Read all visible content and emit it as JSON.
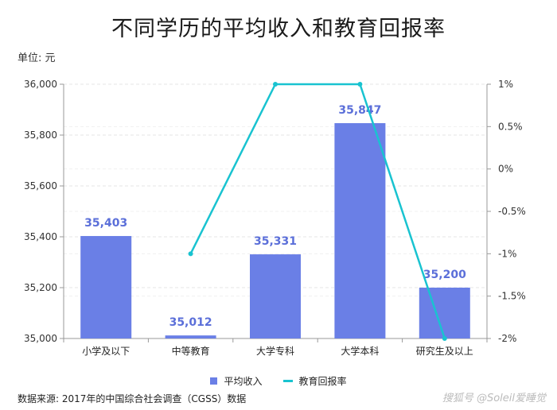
{
  "title": "不同学历的平均收入和教育回报率",
  "unit_label": "单位: 元",
  "source": "数据来源: 2017年的中国综合社会调查（CGSS）数据",
  "watermark": "搜狐号 @Soleil爱睡觉",
  "colors": {
    "bar": "#6a7fe6",
    "line": "#19c3d0",
    "data_label": "#5b6fd9",
    "grid": "#e6e6e6"
  },
  "chart_data": {
    "type": "bar",
    "title": "不同学历的平均收入和教育回报率",
    "categories": [
      "小学及以下",
      "中等教育",
      "大学专科",
      "大学本科",
      "研究生及以上"
    ],
    "series": [
      {
        "name": "平均收入",
        "type": "bar",
        "axis": "left",
        "values": [
          35403,
          35012,
          35331,
          35847,
          35200
        ],
        "labels": [
          "35,403",
          "35,012",
          "35,331",
          "35,847",
          "35,200"
        ]
      },
      {
        "name": "教育回报率",
        "type": "line",
        "axis": "right",
        "values": [
          null,
          -1.0,
          1.0,
          1.0,
          -2.0
        ]
      }
    ],
    "y_left": {
      "lim": [
        35000,
        36000
      ],
      "ticks": [
        35000,
        35200,
        35400,
        35600,
        35800,
        36000
      ],
      "tick_labels": [
        "35,000",
        "35,200",
        "35,400",
        "35,600",
        "35,800",
        "36,000"
      ]
    },
    "y_right": {
      "lim": [
        -2,
        1
      ],
      "ticks": [
        -2,
        -1.5,
        -1,
        -0.5,
        0,
        0.5,
        1
      ],
      "tick_labels": [
        "-2%",
        "-1.5%",
        "-1%",
        "-0.5%",
        "0%",
        "0.5%",
        "1%"
      ]
    },
    "grid": true,
    "legend": {
      "position": "bottom",
      "entries": [
        "平均收入",
        "教育回报率"
      ]
    }
  }
}
